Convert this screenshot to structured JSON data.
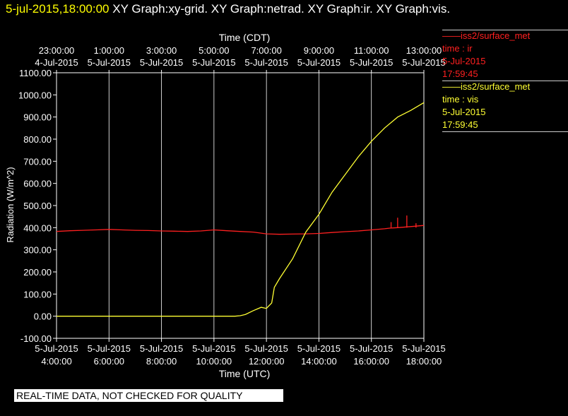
{
  "header": {
    "timestamp": "5-jul-2015,18:00:00",
    "graphs": "XY Graph:xy-grid.  XY Graph:netrad.  XY Graph:ir.  XY Graph:vis."
  },
  "legend": {
    "ir": {
      "name": "iss2/surface_met",
      "var": "time : ir",
      "date": "5-Jul-2015",
      "time": "17:59:45"
    },
    "vis": {
      "name": "iss2/surface_met",
      "var": "time : vis",
      "date": "5-Jul-2015",
      "time": "17:59:45"
    }
  },
  "footer": "REAL-TIME DATA, NOT CHECKED FOR QUALITY",
  "colors": {
    "ir": "#ff2020",
    "vis": "#ffff33",
    "grid": "#ffffff",
    "title_time": "#ffff00"
  },
  "chart_data": {
    "type": "line",
    "title": "",
    "xlabel_bottom": "Time (UTC)",
    "xlabel_top": "Time (CDT)",
    "ylabel": "Radiation (W/m^2)",
    "ylim": [
      -100,
      1100
    ],
    "xlim_utc_hours": [
      4,
      18
    ],
    "yticks": [
      "1100.00",
      "1000.00",
      "900.00",
      "800.00",
      "700.00",
      "600.00",
      "500.00",
      "400.00",
      "300.00",
      "200.00",
      "100.00",
      "0.00",
      "-100.00"
    ],
    "yticks_values": [
      1100,
      1000,
      900,
      800,
      700,
      600,
      500,
      400,
      300,
      200,
      100,
      0,
      -100
    ],
    "xticks_bottom": [
      {
        "hour": 4,
        "date": "5-Jul-2015",
        "time": "4:00:00"
      },
      {
        "hour": 6,
        "date": "5-Jul-2015",
        "time": "6:00:00"
      },
      {
        "hour": 8,
        "date": "5-Jul-2015",
        "time": "8:00:00"
      },
      {
        "hour": 10,
        "date": "5-Jul-2015",
        "time": "10:00:00"
      },
      {
        "hour": 12,
        "date": "5-Jul-2015",
        "time": "12:00:00"
      },
      {
        "hour": 14,
        "date": "5-Jul-2015",
        "time": "14:00:00"
      },
      {
        "hour": 16,
        "date": "5-Jul-2015",
        "time": "16:00:00"
      },
      {
        "hour": 18,
        "date": "5-Jul-2015",
        "time": "18:00:00"
      }
    ],
    "xticks_top": [
      {
        "hour": 4,
        "time": "23:00:00",
        "date": "4-Jul-2015"
      },
      {
        "hour": 6,
        "time": "1:00:00",
        "date": "5-Jul-2015"
      },
      {
        "hour": 8,
        "time": "3:00:00",
        "date": "5-Jul-2015"
      },
      {
        "hour": 10,
        "time": "5:00:00",
        "date": "5-Jul-2015"
      },
      {
        "hour": 12,
        "time": "7:00:00",
        "date": "5-Jul-2015"
      },
      {
        "hour": 14,
        "time": "9:00:00",
        "date": "5-Jul-2015"
      },
      {
        "hour": 16,
        "time": "11:00:00",
        "date": "5-Jul-2015"
      },
      {
        "hour": 18,
        "time": "13:00:00",
        "date": "5-Jul-2015"
      }
    ],
    "grid": true,
    "series": [
      {
        "name": "ir",
        "x": [
          4,
          4.5,
          5,
          5.5,
          6,
          6.5,
          7,
          7.5,
          8,
          8.5,
          9,
          9.5,
          10,
          10.5,
          11,
          11.5,
          12,
          12.5,
          13,
          13.5,
          14,
          14.5,
          15,
          15.5,
          16,
          16.5,
          16.7,
          17,
          17.5,
          18
        ],
        "y": [
          383,
          386,
          388,
          390,
          392,
          390,
          388,
          387,
          385,
          384,
          383,
          385,
          390,
          386,
          383,
          380,
          372,
          370,
          371,
          372,
          374,
          378,
          382,
          385,
          390,
          395,
          398,
          400,
          405,
          410
        ],
        "spikes": [
          {
            "x": 16.75,
            "y": 425
          },
          {
            "x": 17.0,
            "y": 445
          },
          {
            "x": 17.35,
            "y": 455
          },
          {
            "x": 17.7,
            "y": 420
          }
        ]
      },
      {
        "name": "vis",
        "x": [
          4,
          5,
          6,
          7,
          8,
          9,
          10,
          10.5,
          10.8,
          11,
          11.2,
          11.5,
          11.8,
          12,
          12.2,
          12.3,
          12.5,
          13,
          13.5,
          14,
          14.5,
          15,
          15.5,
          16,
          16.5,
          17,
          17.5,
          18
        ],
        "y": [
          0,
          0,
          0,
          0,
          0,
          0,
          0,
          0,
          0,
          2,
          8,
          25,
          40,
          35,
          60,
          130,
          170,
          260,
          380,
          460,
          560,
          640,
          720,
          790,
          850,
          900,
          930,
          965
        ]
      }
    ]
  }
}
